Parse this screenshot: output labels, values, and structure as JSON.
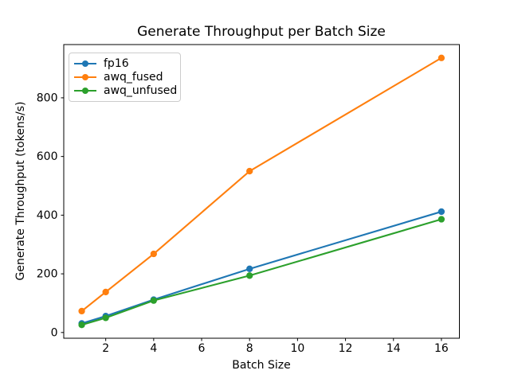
{
  "chart_data": {
    "type": "line",
    "title": "Generate Throughput per Batch Size",
    "xlabel": "Batch Size",
    "ylabel": "Generate Throughput (tokens/s)",
    "x": [
      1,
      2,
      4,
      8,
      16
    ],
    "series": [
      {
        "name": "fp16",
        "color": "#1f77b4",
        "values": [
          31,
          56,
          112,
          217,
          412
        ]
      },
      {
        "name": "awq_fused",
        "color": "#ff7f0e",
        "values": [
          73,
          138,
          268,
          550,
          936
        ]
      },
      {
        "name": "awq_unfused",
        "color": "#2ca02c",
        "values": [
          26,
          50,
          109,
          194,
          386
        ]
      }
    ],
    "xlim": [
      0.25,
      16.75
    ],
    "ylim": [
      -19.5,
      981.5
    ],
    "xticks": [
      2,
      4,
      6,
      8,
      10,
      12,
      14,
      16
    ],
    "yticks": [
      0,
      200,
      400,
      600,
      800
    ],
    "legend_position": "upper left",
    "grid": false,
    "marker": "circle",
    "background_color": "#ffffff",
    "axis_color": "#000000"
  }
}
